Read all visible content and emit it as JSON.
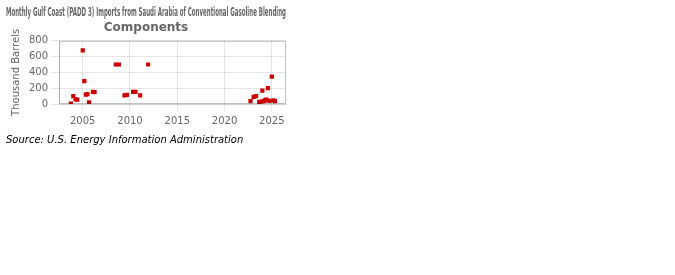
{
  "chart_data": {
    "type": "scatter",
    "title": "Monthly Gulf Coast (PADD 3) Imports from Saudi Arabia of Conventional Gasoline Blending\nComponents",
    "ylabel": "Thousand Barrels",
    "annotations": [
      "Source: U.S. Energy Information Administration"
    ],
    "color": "#cc0000",
    "marker": "square",
    "grid": true,
    "xlim": [
      2002.5,
      2026.5
    ],
    "ylim": [
      0,
      800
    ],
    "xticks": [
      2005,
      2010,
      2015,
      2020,
      2025
    ],
    "yticks": [
      0,
      200,
      400,
      600,
      800
    ],
    "x": [
      2003.75,
      2004.0,
      2004.25,
      2004.42,
      2005.0,
      2005.17,
      2005.33,
      2005.5,
      2005.67,
      2006.08,
      2006.25,
      2008.5,
      2008.83,
      2009.42,
      2009.67,
      2010.33,
      2010.58,
      2011.08,
      2011.92,
      2022.75,
      2023.08,
      2023.33,
      2023.67,
      2023.83,
      2024.0,
      2024.17,
      2024.25,
      2024.42,
      2024.58,
      2024.75,
      2025.0,
      2025.17,
      2025.33
    ],
    "values": [
      5,
      100,
      60,
      55,
      680,
      290,
      120,
      125,
      20,
      155,
      150,
      500,
      500,
      110,
      115,
      155,
      155,
      110,
      500,
      35,
      90,
      100,
      25,
      30,
      170,
      35,
      45,
      55,
      200,
      40,
      345,
      45,
      35
    ]
  }
}
